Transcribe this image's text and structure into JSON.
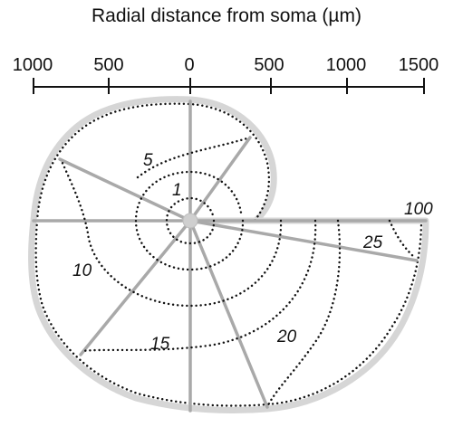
{
  "title": "Radial distance from soma (µm)",
  "axis": {
    "ticks": [
      "1000",
      "500",
      "0",
      "500",
      "1000",
      "1500"
    ]
  },
  "contours": [
    "1",
    "5",
    "10",
    "15",
    "20",
    "25",
    "100"
  ],
  "colors": {
    "outline": "#d6d6d6",
    "spokes": "#a9a9a9",
    "dots": "#111111",
    "soma": "#cfcfcf"
  }
}
